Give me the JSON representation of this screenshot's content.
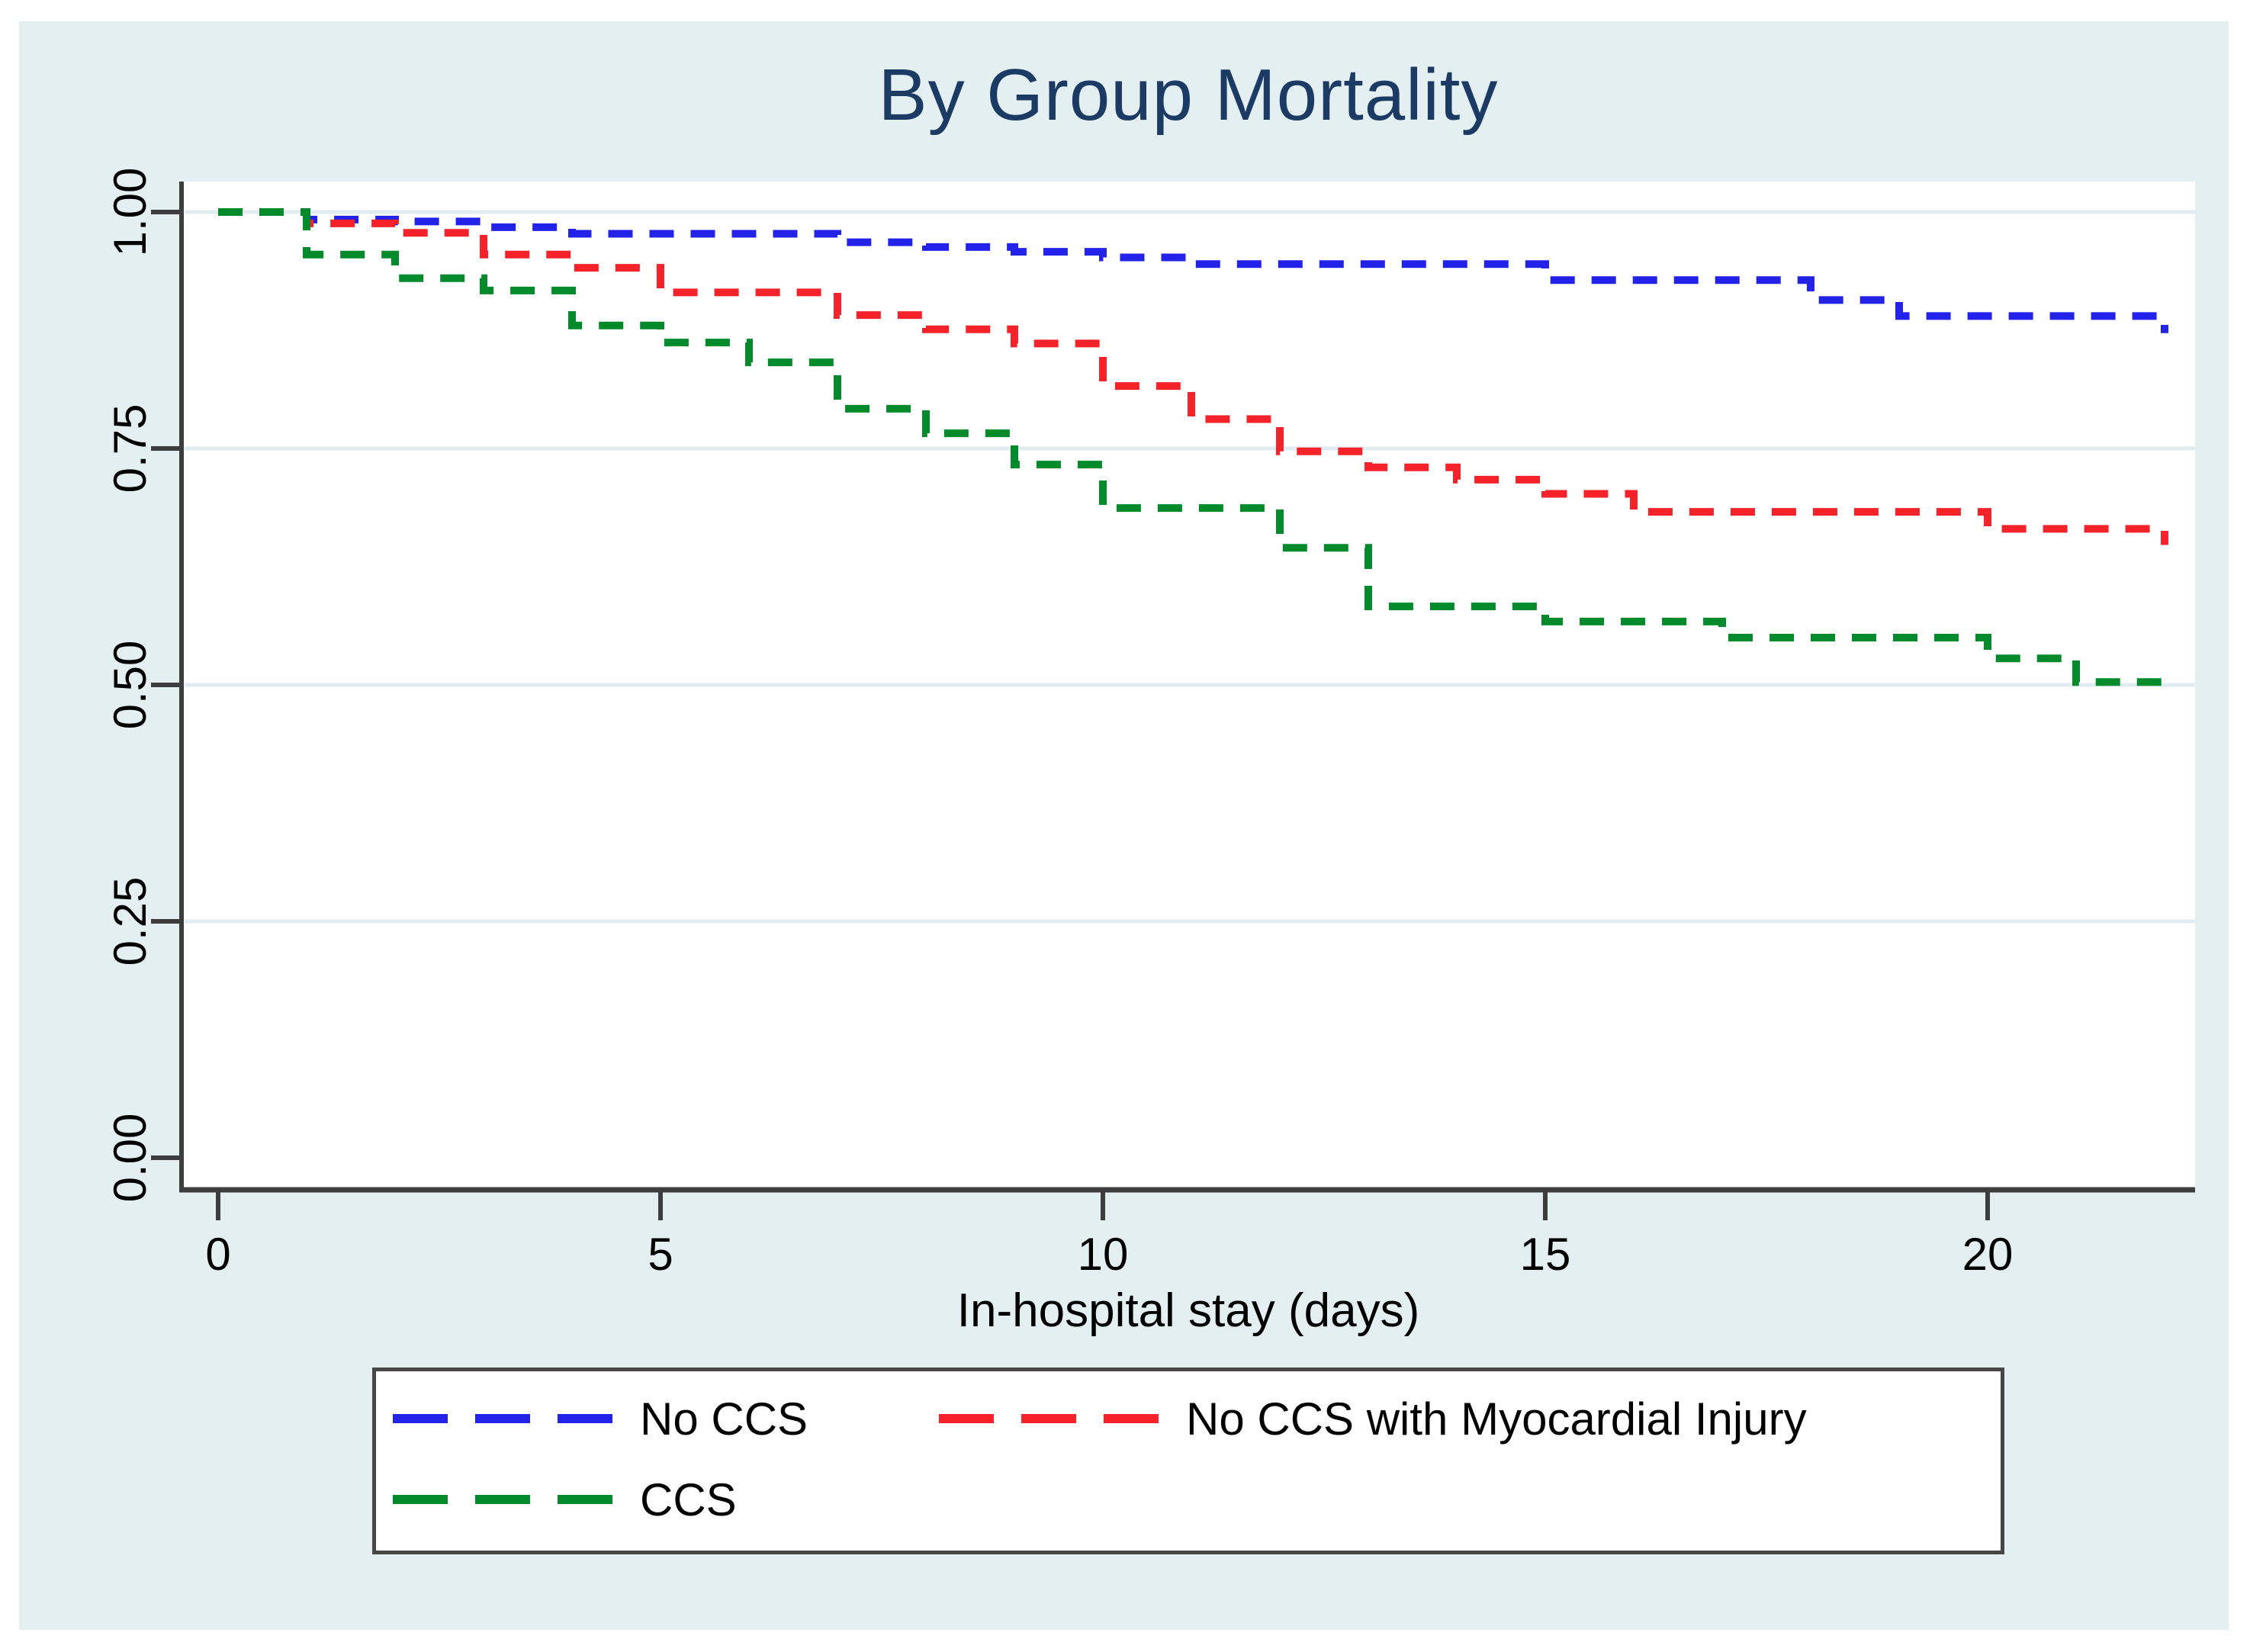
{
  "figure": {
    "background_color": "#e4eff1",
    "plot_background": "#ffffff",
    "title_color": "#1b3a64",
    "axis_color": "#3d3d3d",
    "gridline_color": "#e0ecf2",
    "legend_border_color": "#474747"
  },
  "chart_data": {
    "type": "line",
    "variant": "kaplan-meier step curves, dashed",
    "title": "By Group Mortality",
    "xlabel": "In-hospital stay (days)",
    "ylabel": "",
    "xlim": [
      0,
      22.3
    ],
    "ylim": [
      0,
      1.0
    ],
    "grid": "horizontal light gridlines at y ticks",
    "legend_position": "bottom boxed legend, two rows",
    "x_ticks": [
      {
        "v": 0,
        "label": "0"
      },
      {
        "v": 5,
        "label": "5"
      },
      {
        "v": 10,
        "label": "10"
      },
      {
        "v": 15,
        "label": "15"
      },
      {
        "v": 20,
        "label": "20"
      }
    ],
    "y_ticks": [
      {
        "v": 1.0,
        "label": "1.00"
      },
      {
        "v": 0.75,
        "label": "0.75"
      },
      {
        "v": 0.5,
        "label": "0.50"
      },
      {
        "v": 0.25,
        "label": "0.25"
      },
      {
        "v": 0.0,
        "label": "0.00"
      }
    ],
    "y_gridline_values": [
      1.0,
      0.75,
      0.5,
      0.25
    ],
    "series": [
      {
        "name": "No CCS",
        "color": "#2222e8",
        "steps": [
          [
            0,
            1.0
          ],
          [
            1,
            0.992
          ],
          [
            2,
            0.99
          ],
          [
            3,
            0.984
          ],
          [
            4,
            0.977
          ],
          [
            7,
            0.968
          ],
          [
            8,
            0.963
          ],
          [
            9,
            0.958
          ],
          [
            10,
            0.952
          ],
          [
            11,
            0.945
          ],
          [
            15,
            0.928
          ],
          [
            18,
            0.907
          ],
          [
            19,
            0.89
          ],
          [
            22,
            0.872
          ]
        ]
      },
      {
        "name": "No CCS with Myocardial Injury",
        "color": "#f5222a",
        "steps": [
          [
            0,
            1.0
          ],
          [
            1,
            0.988
          ],
          [
            2,
            0.978
          ],
          [
            3,
            0.955
          ],
          [
            4,
            0.941
          ],
          [
            5,
            0.915
          ],
          [
            7,
            0.891
          ],
          [
            8,
            0.876
          ],
          [
            9,
            0.861
          ],
          [
            10,
            0.816
          ],
          [
            11,
            0.781
          ],
          [
            12,
            0.747
          ],
          [
            13,
            0.73
          ],
          [
            14,
            0.717
          ],
          [
            15,
            0.702
          ],
          [
            16,
            0.683
          ],
          [
            20,
            0.665
          ],
          [
            22,
            0.648
          ]
        ]
      },
      {
        "name": "CCS",
        "color": "#038a2b",
        "steps": [
          [
            0,
            1.0
          ],
          [
            1,
            0.955
          ],
          [
            2,
            0.93
          ],
          [
            3,
            0.917
          ],
          [
            4,
            0.88
          ],
          [
            5,
            0.862
          ],
          [
            6,
            0.841
          ],
          [
            7,
            0.792
          ],
          [
            8,
            0.766
          ],
          [
            9,
            0.733
          ],
          [
            10,
            0.687
          ],
          [
            12,
            0.645
          ],
          [
            13,
            0.583
          ],
          [
            15,
            0.567
          ],
          [
            17,
            0.55
          ],
          [
            20,
            0.528
          ],
          [
            21,
            0.503
          ],
          [
            22.15,
            0.503
          ]
        ]
      }
    ]
  }
}
